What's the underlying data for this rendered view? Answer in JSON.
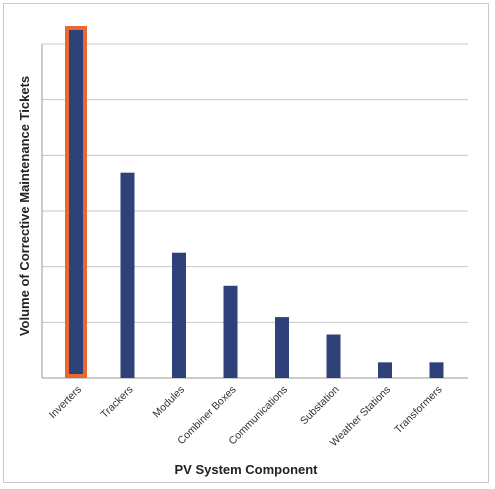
{
  "chart_data": {
    "type": "bar",
    "title": "",
    "xlabel": "PV System Component",
    "ylabel": "Volume of Corrective Maintenance Tickets",
    "categories": [
      "Inverters",
      "Trackers",
      "Modules",
      "Combiner Boxes",
      "Communications",
      "Substation",
      "Weather Stations",
      "Transformers"
    ],
    "values": [
      100,
      59,
      36,
      26.5,
      17.5,
      12.5,
      4.5,
      4.5
    ],
    "ylim": [
      0,
      100
    ],
    "y_tick_labels_shown": false,
    "grid": true,
    "highlighted_category": "Inverters",
    "colors": {
      "bar": "#2e4179",
      "highlight": "#e8692f",
      "grid": "#c8c8c8",
      "axis": "#999999"
    }
  }
}
